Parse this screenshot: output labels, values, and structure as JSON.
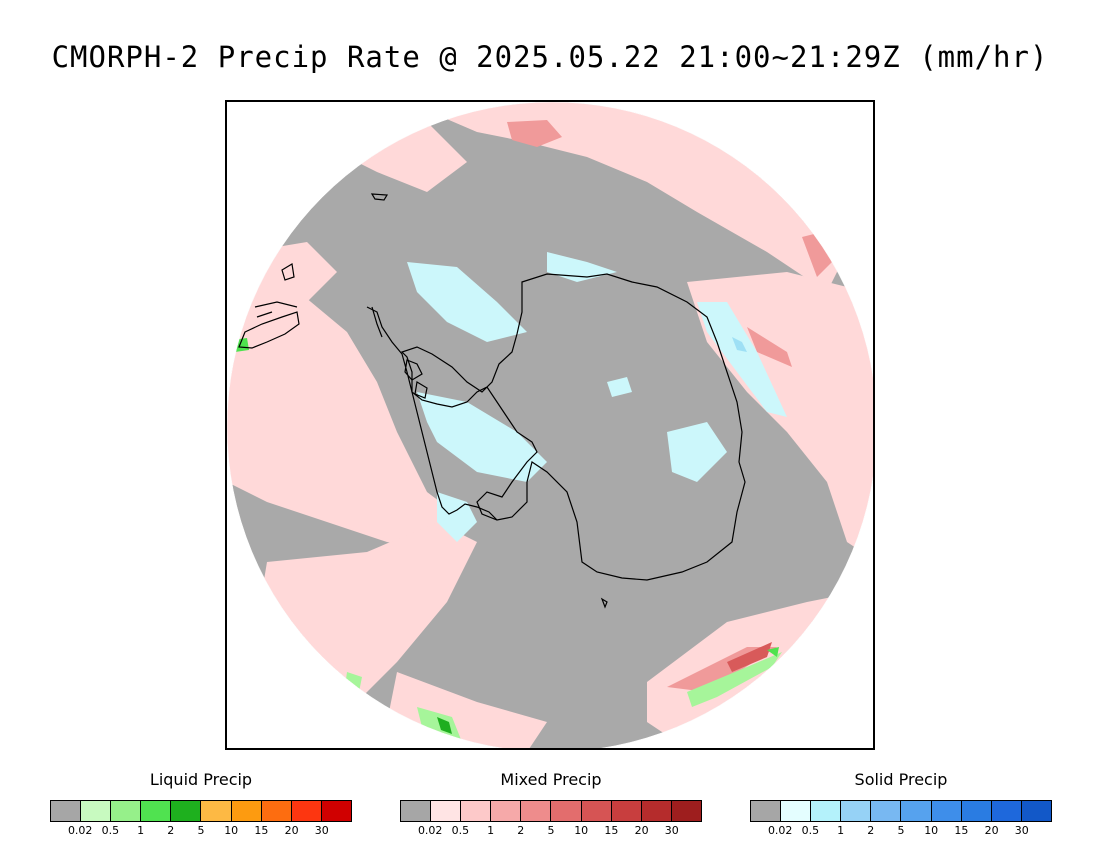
{
  "title": "CMORPH-2 Precip Rate @ 2025.05.22 21:00~21:29Z (mm/hr)",
  "map_colors": {
    "no_precip": "#a9a9a9",
    "mixed_light": "#ffd9d9",
    "mixed_mid": "#f09a9a",
    "mixed_heavy": "#d85a5a",
    "solid_light": "#ccf7fb",
    "solid_mid": "#9ee0f5",
    "solid_blue": "#5fa8e8",
    "liquid_light": "#a6f59a",
    "liquid_mid": "#4ee24e",
    "liquid_heavy": "#1fae1f",
    "coast": "#000000"
  },
  "legends": [
    {
      "title": "Liquid Precip",
      "colors": [
        "#a6a6a6",
        "#c8fac0",
        "#96f08a",
        "#50e250",
        "#1eb01e",
        "#fdb944",
        "#fd9b10",
        "#fd6d10",
        "#fd3610",
        "#d00000"
      ],
      "ticks": [
        "0.02",
        "0.5",
        "1",
        "2",
        "5",
        "10",
        "15",
        "20",
        "30"
      ]
    },
    {
      "title": "Mixed Precip",
      "colors": [
        "#a6a6a6",
        "#ffe4e4",
        "#fdc9c9",
        "#f6a9a9",
        "#ee8c8c",
        "#e36d6d",
        "#d65454",
        "#c83e3e",
        "#b52c2c",
        "#9e1e1e"
      ],
      "ticks": [
        "0.02",
        "0.5",
        "1",
        "2",
        "5",
        "10",
        "15",
        "20",
        "30"
      ]
    },
    {
      "title": "Solid Precip",
      "colors": [
        "#a6a6a6",
        "#e4feff",
        "#b4f2fb",
        "#96d2f6",
        "#78b8f2",
        "#56a2ee",
        "#3e8eea",
        "#2a7ce2",
        "#1e68dc",
        "#1258c8"
      ],
      "ticks": [
        "0.02",
        "0.5",
        "1",
        "2",
        "5",
        "10",
        "15",
        "20",
        "30"
      ]
    }
  ]
}
